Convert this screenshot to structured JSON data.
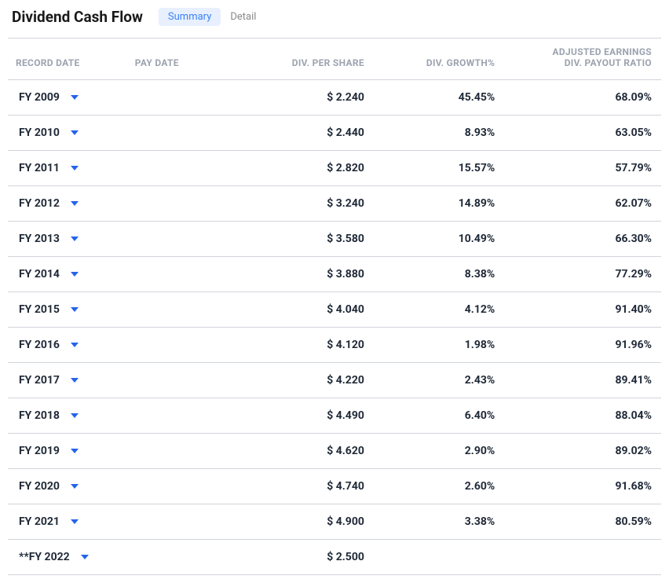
{
  "header": {
    "title": "Dividend Cash Flow",
    "tabs": {
      "summary": "Summary",
      "detail": "Detail"
    }
  },
  "columns": {
    "record_date": "RECORD DATE",
    "pay_date": "PAY DATE",
    "div_per_share": "DIV. PER SHARE",
    "div_growth": "DIV. GROWTH%",
    "adj_earn_line1": "ADJUSTED EARNINGS",
    "adj_earn_line2": "DIV. PAYOUT RATIO"
  },
  "rows": [
    {
      "record_date": "FY 2009",
      "pay_date": "",
      "dps": "$ 2.240",
      "growth": "45.45%",
      "payout": "68.09%"
    },
    {
      "record_date": "FY 2010",
      "pay_date": "",
      "dps": "$ 2.440",
      "growth": "8.93%",
      "payout": "63.05%"
    },
    {
      "record_date": "FY 2011",
      "pay_date": "",
      "dps": "$ 2.820",
      "growth": "15.57%",
      "payout": "57.79%"
    },
    {
      "record_date": "FY 2012",
      "pay_date": "",
      "dps": "$ 3.240",
      "growth": "14.89%",
      "payout": "62.07%"
    },
    {
      "record_date": "FY 2013",
      "pay_date": "",
      "dps": "$ 3.580",
      "growth": "10.49%",
      "payout": "66.30%"
    },
    {
      "record_date": "FY 2014",
      "pay_date": "",
      "dps": "$ 3.880",
      "growth": "8.38%",
      "payout": "77.29%"
    },
    {
      "record_date": "FY 2015",
      "pay_date": "",
      "dps": "$ 4.040",
      "growth": "4.12%",
      "payout": "91.40%"
    },
    {
      "record_date": "FY 2016",
      "pay_date": "",
      "dps": "$ 4.120",
      "growth": "1.98%",
      "payout": "91.96%"
    },
    {
      "record_date": "FY 2017",
      "pay_date": "",
      "dps": "$ 4.220",
      "growth": "2.43%",
      "payout": "89.41%"
    },
    {
      "record_date": "FY 2018",
      "pay_date": "",
      "dps": "$ 4.490",
      "growth": "6.40%",
      "payout": "88.04%"
    },
    {
      "record_date": "FY 2019",
      "pay_date": "",
      "dps": "$ 4.620",
      "growth": "2.90%",
      "payout": "89.02%"
    },
    {
      "record_date": "FY 2020",
      "pay_date": "",
      "dps": "$ 4.740",
      "growth": "2.60%",
      "payout": "91.68%"
    },
    {
      "record_date": "FY 2021",
      "pay_date": "",
      "dps": "$ 4.900",
      "growth": "3.38%",
      "payout": "80.59%"
    },
    {
      "record_date": "**FY 2022",
      "pay_date": "",
      "dps": "$ 2.500",
      "growth": "",
      "payout": ""
    }
  ],
  "styling": {
    "header_color": "#9ca3af",
    "body_text_color": "#1f2937",
    "border_color": "#d1d5db",
    "chevron_color": "#2563eb",
    "tab_active_bg": "#e8f0ff",
    "tab_active_color": "#3b82f6",
    "tab_inactive_color": "#888888",
    "font_family": "system-ui",
    "title_fontsize": 19,
    "header_fontsize": 12,
    "body_fontsize": 14
  }
}
